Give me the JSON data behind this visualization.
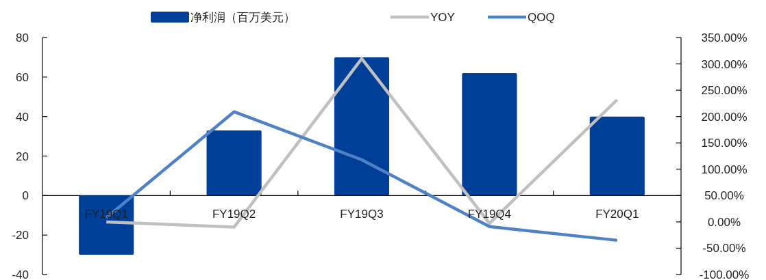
{
  "chart_data": {
    "type": "bar",
    "categories": [
      "FY19Q1",
      "FY19Q2",
      "FY19Q3",
      "FY19Q4",
      "FY20Q1"
    ],
    "series": [
      {
        "name": "净利润（百万美元）",
        "color": "#003f98",
        "values": [
          -30,
          33,
          70,
          62,
          40
        ]
      },
      {
        "name": "YOY",
        "type": "line",
        "axis": "y2",
        "color": "#c0c0c0",
        "values": [
          0,
          -10,
          310,
          -3,
          232
        ]
      },
      {
        "name": "QOQ",
        "type": "line",
        "axis": "y2",
        "color": "#4f81c7",
        "values": [
          8,
          209,
          118,
          -9,
          -35
        ]
      }
    ],
    "ylim": [
      -40,
      80
    ],
    "yticks": [
      -40,
      -20,
      0,
      20,
      40,
      60,
      80
    ],
    "y2lim": [
      -100,
      350
    ],
    "y2ticks": [
      {
        "value": -100,
        "label": "-100.00%"
      },
      {
        "value": -50,
        "label": "-50.00%"
      },
      {
        "value": 0,
        "label": "0.00%"
      },
      {
        "value": 50,
        "label": "50.00%"
      },
      {
        "value": 100,
        "label": "100.00%"
      },
      {
        "value": 150,
        "label": "150.00%"
      },
      {
        "value": 200,
        "label": "200.00%"
      },
      {
        "value": 250,
        "label": "250.00%"
      },
      {
        "value": 300,
        "label": "300.00%"
      },
      {
        "value": 350,
        "label": "350.00%"
      }
    ],
    "legend": "top",
    "grid": false,
    "marker": "none",
    "line_style": "solid"
  }
}
